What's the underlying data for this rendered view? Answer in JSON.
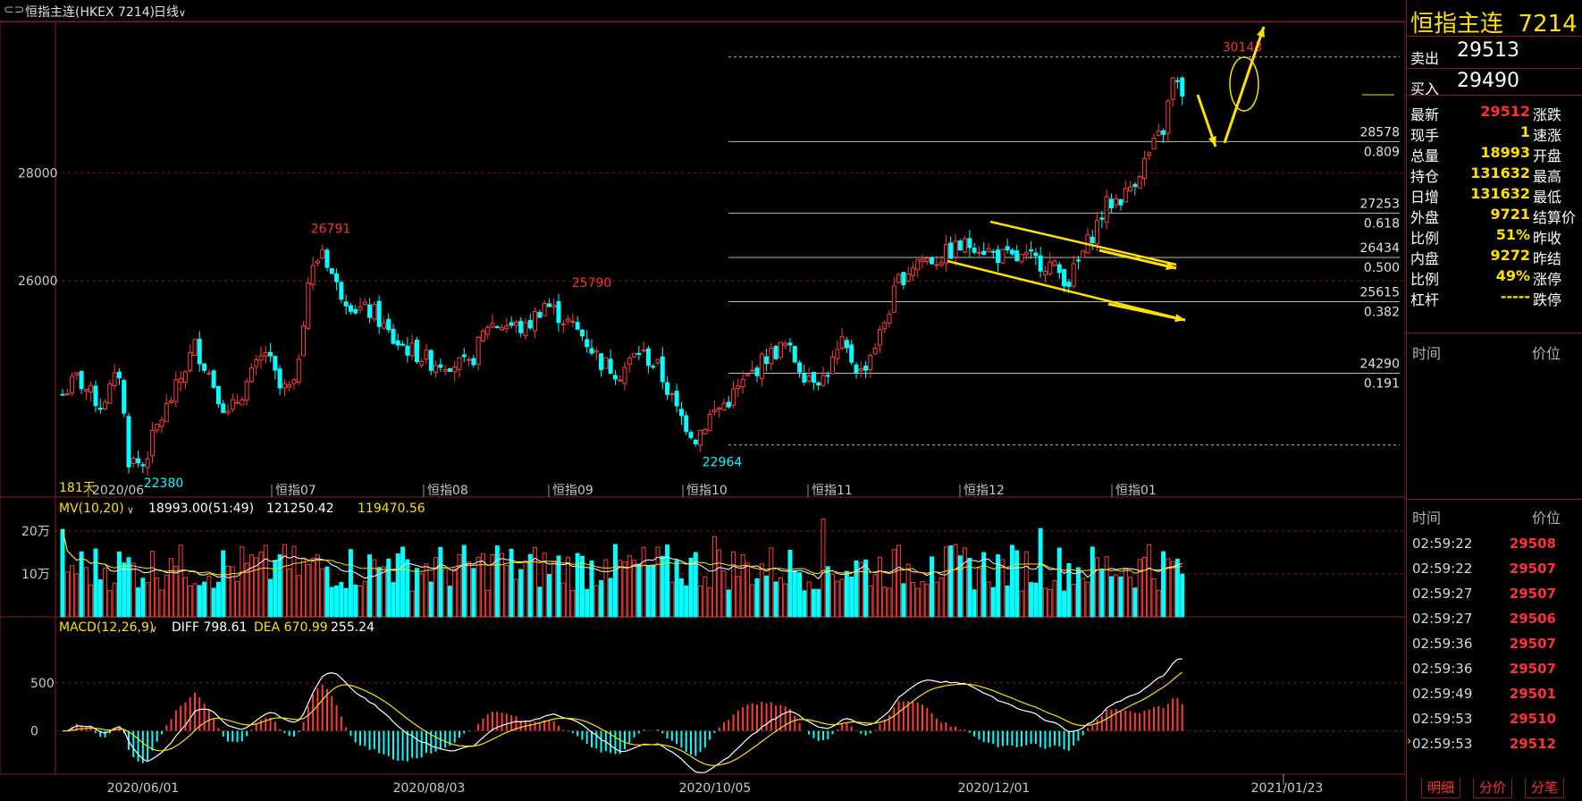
{
  "header": {
    "title": "恒指主连(HKEX 7214)",
    "period": "日线"
  },
  "right_panel": {
    "name": "恒指主连",
    "code": "7214",
    "sell_label": "卖出",
    "sell": "29513",
    "buy_label": "买入",
    "buy": "29490",
    "quotes": [
      {
        "l": "最新",
        "v": "29512",
        "r": "涨跌",
        "c": "#ff3030"
      },
      {
        "l": "现手",
        "v": "1",
        "r": "速涨",
        "c": "#ffe000"
      },
      {
        "l": "总量",
        "v": "18993",
        "r": "开盘",
        "c": "#ffe000"
      },
      {
        "l": "持仓",
        "v": "131632",
        "r": "最高",
        "c": "#ffe000"
      },
      {
        "l": "日增",
        "v": "131632",
        "r": "最低",
        "c": "#ffe000"
      },
      {
        "l": "外盘",
        "v": "9721",
        "r": "结算价",
        "c": "#ffe000"
      },
      {
        "l": "比例",
        "v": "51%",
        "r": "昨收",
        "c": "#ffe000"
      },
      {
        "l": "内盘",
        "v": "9272",
        "r": "昨结",
        "c": "#ffe000"
      },
      {
        "l": "比例",
        "v": "49%",
        "r": "涨停",
        "c": "#ffe000"
      },
      {
        "l": "杠杆",
        "v": "-----",
        "r": "跌停",
        "c": "#ffe000"
      }
    ],
    "header_time": "时间",
    "header_price": "价位",
    "ticks": [
      {
        "t": "02:59:22",
        "p": "29508"
      },
      {
        "t": "02:59:22",
        "p": "29507"
      },
      {
        "t": "02:59:27",
        "p": "29507"
      },
      {
        "t": "02:59:27",
        "p": "29506"
      },
      {
        "t": "02:59:36",
        "p": "29507"
      },
      {
        "t": "02:59:36",
        "p": "29507"
      },
      {
        "t": "02:59:49",
        "p": "29501"
      },
      {
        "t": "02:59:53",
        "p": "29510"
      },
      {
        "t": "02:59:53",
        "p": "29512"
      }
    ],
    "tabs": [
      "明细",
      "分价",
      "分笔"
    ]
  },
  "chart_data": [
    {
      "type": "candlestick",
      "ylim": [
        22000,
        30800
      ],
      "y_ticks": [
        26000,
        28000
      ],
      "days_label": "181天",
      "month_labels": [
        "2020/06",
        "恒指07",
        "恒指08",
        "恒指09",
        "恒指10",
        "恒指11",
        "恒指12",
        "恒指01"
      ],
      "high_low_labels": [
        {
          "text": "26791",
          "value": 26791
        },
        {
          "text": "25790",
          "value": 25790
        },
        {
          "text": "30143",
          "value": 30143
        },
        {
          "text": "22964",
          "value": 22964
        },
        {
          "text": "22380",
          "value": 22380
        }
      ],
      "fib_levels": [
        {
          "price": 30143,
          "ratio": ""
        },
        {
          "price": 28578,
          "ratio": "0.809"
        },
        {
          "price": 27253,
          "ratio": "0.618"
        },
        {
          "price": 26434,
          "ratio": "0.500"
        },
        {
          "price": 25615,
          "ratio": "0.382"
        },
        {
          "price": 24290,
          "ratio": "0.191"
        },
        {
          "price": 22964,
          "ratio": ""
        }
      ],
      "closes_anchors": [
        [
          0,
          23900
        ],
        [
          3,
          24200
        ],
        [
          8,
          23700
        ],
        [
          12,
          24300
        ],
        [
          14,
          22700
        ],
        [
          17,
          22600
        ],
        [
          20,
          23300
        ],
        [
          24,
          24000
        ],
        [
          28,
          24800
        ],
        [
          31,
          24300
        ],
        [
          35,
          23500
        ],
        [
          39,
          24100
        ],
        [
          43,
          24700
        ],
        [
          46,
          24000
        ],
        [
          49,
          24000
        ],
        [
          52,
          26000
        ],
        [
          55,
          26600
        ],
        [
          58,
          25900
        ],
        [
          62,
          25500
        ],
        [
          66,
          25400
        ],
        [
          70,
          24900
        ],
        [
          74,
          24700
        ],
        [
          78,
          24500
        ],
        [
          82,
          24500
        ],
        [
          86,
          24400
        ],
        [
          90,
          25200
        ],
        [
          94,
          25200
        ],
        [
          98,
          25100
        ],
        [
          102,
          25600
        ],
        [
          106,
          25300
        ],
        [
          110,
          25000
        ],
        [
          114,
          24500
        ],
        [
          118,
          24300
        ],
        [
          122,
          24700
        ],
        [
          126,
          24400
        ],
        [
          130,
          23600
        ],
        [
          134,
          23100
        ],
        [
          137,
          23500
        ],
        [
          141,
          23800
        ],
        [
          145,
          24200
        ],
        [
          149,
          24600
        ],
        [
          153,
          24800
        ],
        [
          157,
          24300
        ],
        [
          161,
          24200
        ],
        [
          165,
          24800
        ],
        [
          169,
          24300
        ],
        [
          173,
          25000
        ],
        [
          177,
          26000
        ],
        [
          181,
          26400
        ],
        [
          185,
          26400
        ],
        [
          189,
          26600
        ],
        [
          193,
          26700
        ],
        [
          197,
          26500
        ],
        [
          201,
          26400
        ],
        [
          205,
          26400
        ],
        [
          209,
          26300
        ],
        [
          213,
          26000
        ],
        [
          217,
          26700
        ],
        [
          221,
          27400
        ],
        [
          225,
          27600
        ],
        [
          229,
          28200
        ],
        [
          233,
          28800
        ],
        [
          235,
          29700
        ],
        [
          237,
          29500
        ]
      ],
      "candle_count": 238
    },
    {
      "type": "bar",
      "title": "MV(10,20)",
      "stats": [
        "18993.00(51:49)",
        "121250.42",
        "119470.56"
      ],
      "y_tick_labels": [
        "20万",
        "10万"
      ],
      "ylim": [
        0,
        250000
      ]
    },
    {
      "type": "bar",
      "title": "MACD(12,26,9)",
      "diff_label": "DIFF 798.61",
      "dea_label": "DEA 670.99",
      "macd_value": "255.24",
      "y_ticks": [
        500,
        0
      ],
      "ylim": [
        -450,
        1000
      ],
      "x_labels": [
        "2020/06/01",
        "2020/08/03",
        "2020/10/05",
        "2020/12/01",
        "2021/01/23"
      ]
    }
  ],
  "colors": {
    "up": "#ff3b3b",
    "down": "#00ffff",
    "accent": "#ffe000",
    "grid": "#8b1a1a",
    "label": "#ff3030"
  }
}
